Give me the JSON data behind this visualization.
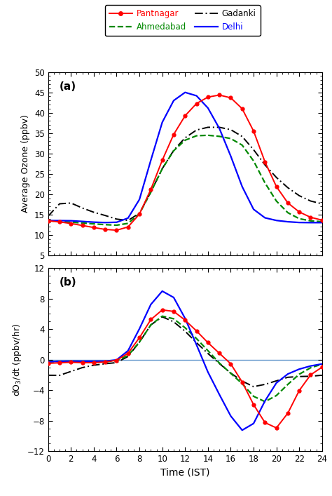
{
  "time": [
    0,
    1,
    2,
    3,
    4,
    5,
    6,
    7,
    8,
    9,
    10,
    11,
    12,
    13,
    14,
    15,
    16,
    17,
    18,
    19,
    20,
    21,
    22,
    23,
    24
  ],
  "pantnagar_ozone": [
    13.5,
    13.2,
    12.8,
    12.3,
    11.8,
    11.3,
    11.0,
    11.5,
    14.5,
    21.0,
    28.5,
    35.0,
    39.5,
    42.5,
    44.0,
    44.5,
    44.0,
    41.5,
    36.0,
    27.5,
    21.5,
    17.5,
    15.5,
    14.2,
    13.5
  ],
  "ahmedabad_ozone": [
    13.5,
    13.3,
    13.1,
    12.9,
    12.7,
    12.5,
    12.3,
    12.5,
    14.5,
    20.5,
    26.5,
    31.0,
    33.5,
    34.5,
    34.5,
    34.2,
    33.8,
    32.5,
    28.5,
    22.5,
    18.0,
    15.2,
    13.8,
    13.4,
    13.2
  ],
  "gadanki_ozone": [
    13.8,
    18.5,
    18.0,
    16.5,
    15.5,
    14.8,
    13.8,
    13.2,
    14.5,
    20.5,
    26.5,
    31.0,
    34.0,
    36.0,
    36.5,
    36.5,
    36.0,
    34.5,
    31.0,
    27.0,
    24.0,
    21.5,
    19.5,
    18.2,
    17.5
  ],
  "delhi_ozone": [
    13.5,
    13.5,
    13.5,
    13.3,
    13.1,
    13.0,
    13.0,
    13.5,
    17.5,
    28.5,
    38.5,
    43.5,
    45.5,
    44.5,
    41.5,
    36.5,
    29.5,
    21.5,
    15.5,
    14.0,
    13.5,
    13.2,
    13.0,
    13.0,
    13.0
  ],
  "pantnagar_doz": [
    -0.5,
    -0.4,
    -0.3,
    -0.4,
    -0.4,
    -0.3,
    -0.2,
    0.6,
    2.8,
    5.5,
    6.8,
    6.5,
    5.2,
    3.8,
    2.2,
    0.8,
    -0.3,
    -2.8,
    -6.0,
    -8.5,
    -9.5,
    -7.2,
    -3.8,
    -1.8,
    -0.8
  ],
  "ahmedabad_doz": [
    -0.3,
    -0.2,
    -0.2,
    -0.2,
    -0.3,
    -0.3,
    -0.2,
    0.3,
    2.2,
    4.8,
    6.0,
    5.5,
    4.2,
    2.8,
    1.2,
    -0.5,
    -1.8,
    -3.0,
    -5.0,
    -5.8,
    -4.8,
    -3.2,
    -1.8,
    -1.0,
    -0.5
  ],
  "gadanki_doz": [
    -2.0,
    -2.2,
    -1.5,
    -1.0,
    -0.7,
    -0.5,
    -0.5,
    0.2,
    2.2,
    4.8,
    6.0,
    5.0,
    3.8,
    2.2,
    0.8,
    -0.5,
    -1.8,
    -2.8,
    -3.8,
    -3.2,
    -2.8,
    -2.2,
    -2.2,
    -2.2,
    -2.0
  ],
  "delhi_doz": [
    -0.3,
    -0.2,
    -0.2,
    -0.2,
    -0.2,
    -0.2,
    -0.2,
    0.8,
    4.0,
    7.5,
    9.5,
    8.5,
    5.5,
    2.0,
    -1.8,
    -4.5,
    -7.5,
    -9.8,
    -8.8,
    -5.2,
    -2.8,
    -1.8,
    -1.2,
    -0.8,
    -0.5
  ],
  "pantnagar_color": "#ff0000",
  "ahmedabad_color": "#008800",
  "gadanki_color": "#000000",
  "delhi_color": "#0000ff",
  "ylabel_a": "Average Ozone (ppbv)",
  "ylabel_b": "dO$_3$/dt (ppbv/hr)",
  "xlabel": "Time (IST)",
  "ylim_a": [
    5,
    50
  ],
  "ylim_b": [
    -12,
    12
  ],
  "xlim": [
    0,
    24
  ],
  "yticks_a": [
    5,
    10,
    15,
    20,
    25,
    30,
    35,
    40,
    45,
    50
  ],
  "yticks_b": [
    -12,
    -8,
    -4,
    0,
    4,
    8,
    12
  ],
  "xticks": [
    0,
    2,
    4,
    6,
    8,
    10,
    12,
    14,
    16,
    18,
    20,
    22,
    24
  ]
}
